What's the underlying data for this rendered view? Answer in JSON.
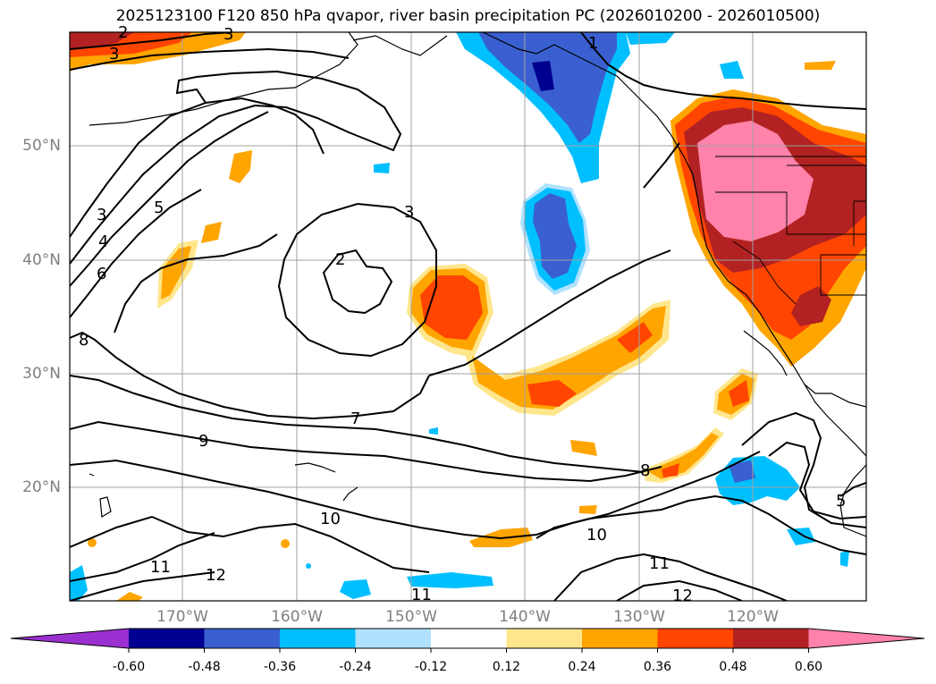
{
  "title": "2025123100 F120 850 hPa qvapor, river basin precipitation PC (2026010200 - 2026010500)",
  "map": {
    "lat_labels": [
      "50°N",
      "40°N",
      "30°N",
      "20°N"
    ],
    "lon_labels": [
      "170°W",
      "160°W",
      "150°W",
      "140°W",
      "130°W",
      "120°W"
    ],
    "contour_labels": [
      "3",
      "5",
      "3",
      "4",
      "6",
      "8",
      "2",
      "3",
      "7",
      "9",
      "10",
      "11",
      "12",
      "10",
      "11",
      "11",
      "12",
      "8",
      "5",
      "1",
      "2",
      "3"
    ]
  },
  "colorbar": {
    "tick_labels": [
      "-0.60",
      "-0.48",
      "-0.36",
      "-0.24",
      "-0.12",
      "0.12",
      "0.24",
      "0.36",
      "0.48",
      "0.60"
    ],
    "colors": [
      "#9b30d0",
      "#000090",
      "#3a5fd0",
      "#00bfff",
      "#b0e2ff",
      "#ffffff",
      "#ffe68c",
      "#ffa500",
      "#ff4500",
      "#b22222",
      "#ff82ab"
    ]
  }
}
